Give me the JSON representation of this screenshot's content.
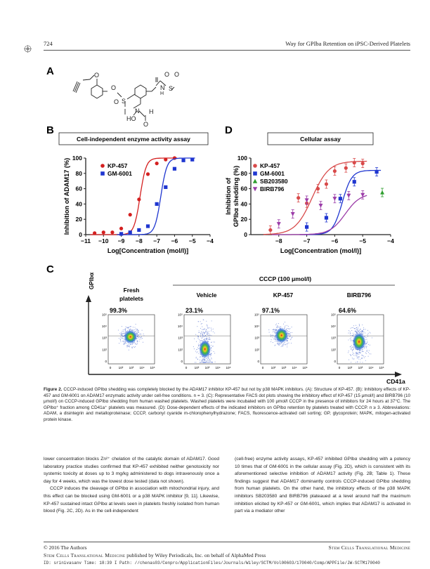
{
  "header": {
    "page_number": "724",
    "running_title": "Way for GPIba Retention on iPSC-Derived Platelets"
  },
  "figure": {
    "panel_labels": {
      "a": "A",
      "b": "B",
      "c": "C",
      "d": "D"
    },
    "structure_atoms": {
      "o_ether": "O",
      "o1": "O",
      "s1": "S",
      "o2": "O",
      "s2": "S",
      "n_sulf": "N",
      "h_sulf": "H",
      "o3": "O",
      "o4": "O",
      "n_hydr": "N",
      "ho": "HO",
      "o5": "O",
      "h_form": "H"
    },
    "panel_b": {
      "title": "Cell-independent enzyme activity assay"
    },
    "panel_d": {
      "title": "Cellular assay"
    },
    "panel_c": {
      "yaxis": "GPIbα",
      "xaxis": "CD41a",
      "cccp_label": "CCCP (100 μmol/l)",
      "columns": [
        {
          "label": "Fresh platelets",
          "line1": "Fresh",
          "line2": "platelets",
          "percent": "99.3%"
        },
        {
          "label": "Vehicle",
          "percent": "23.1%"
        },
        {
          "label": "KP-457",
          "percent": "97.1%"
        },
        {
          "label": "BIRB796",
          "percent": "64.6%"
        }
      ],
      "x_ticks": [
        "0",
        "10²",
        "10³",
        "10⁴",
        "10⁵"
      ],
      "y_ticks": [
        "0",
        "10²",
        "10³",
        "10⁴",
        "10⁵"
      ]
    }
  },
  "chart_data": [
    {
      "type": "scatter",
      "panel": "B",
      "title": "Cell-independent enzyme activity assay",
      "xlabel": "Log[Concentration (mol/l)]",
      "ylabel": "Inhibition of ADAM17 (%)",
      "xlim": [
        -11,
        -4
      ],
      "ylim": [
        0,
        100
      ],
      "xticks": [
        -11,
        -10,
        -9,
        -8,
        -7,
        -6,
        -5,
        -4
      ],
      "yticks": [
        0,
        20,
        40,
        60,
        80,
        100
      ],
      "legend": "top-left",
      "series": [
        {
          "name": "KP-457",
          "color": "#d42020",
          "marker": "circle",
          "x": [
            -10.5,
            -10,
            -9.5,
            -9,
            -8.5,
            -8,
            -7.5,
            -7,
            -6.5,
            -6
          ],
          "y": [
            2,
            3,
            3,
            8,
            26,
            46,
            79,
            93,
            98,
            100
          ]
        },
        {
          "name": "GM-6001",
          "color": "#1f36d0",
          "marker": "square",
          "x": [
            -9,
            -8.5,
            -8,
            -7.5,
            -7,
            -6.5,
            -6,
            -5.5,
            -5
          ],
          "y": [
            1,
            3,
            6,
            11,
            40,
            62,
            86,
            97,
            98
          ]
        }
      ]
    },
    {
      "type": "scatter",
      "panel": "D",
      "title": "Cellular assay",
      "xlabel": "Log[Concentration (mol/l)]",
      "ylabel": "Inhibition of GPIbα shedding (%)",
      "xlim": [
        -9,
        -4
      ],
      "ylim": [
        0,
        100
      ],
      "xticks": [
        -8,
        -7,
        -6,
        -5,
        -4
      ],
      "yticks": [
        0,
        20,
        40,
        60,
        80,
        100
      ],
      "legend": "top-left",
      "series": [
        {
          "name": "KP-457",
          "color": "#d84a4a",
          "marker": "circle",
          "x": [
            -8.3,
            -7.3,
            -7,
            -6.6,
            -6.3,
            -6,
            -5.6,
            -5.3,
            -5
          ],
          "y": [
            6,
            48,
            41,
            60,
            66,
            83,
            87,
            94,
            93
          ]
        },
        {
          "name": "GM-6001",
          "color": "#1f36d0",
          "marker": "square",
          "x": [
            -7,
            -6.3,
            -5.8,
            -5.3,
            -4.5
          ],
          "y": [
            10,
            22,
            47,
            69,
            82
          ]
        },
        {
          "name": "SB203580",
          "color": "#2e9e2e",
          "marker": "triangle",
          "x": [
            -4.3
          ],
          "y": [
            55
          ]
        },
        {
          "name": "BIRB796",
          "color": "#9b3ca8",
          "marker": "triangle-down",
          "x": [
            -8,
            -7.5,
            -7,
            -6.5,
            -6,
            -5.5,
            -5
          ],
          "y": [
            14,
            27,
            45,
            38,
            47,
            51,
            52
          ]
        }
      ]
    }
  ],
  "caption": {
    "label": "Figure 2.",
    "text": "CCCP-induced GPIbα shedding was completely blocked by the ADAM17 inhibitor KP-457 but not by p38 MAPK inhibitors. (A): Structure of KP-457. (B): Inhibitory effects of KP-457 and GM-6001 on ADAM17 enzymatic activity under cell-free conditions. n = 3. (C): Representative FACS dot plots showing the inhibitory effect of KP-457 (15 μmol/l) and BIRB796 (10 μmol/l) on CCCP-induced GPIbα shedding from human washed platelets. Washed platelets were incubated with 100 μmol/l CCCP in the presence of inhibitors for 24 hours at 37°C. The GPIbα⁺ fraction among CD41a⁺ platelets was measured. (D): Dose-dependent effects of the indicated inhibitors on GPIbα retention by platelets treated with CCCP. n ≥ 3. Abbreviations: ADAM, a disintegrin and metalloproteinase; CCCP, carbonyl cyanide m-chlorophenylhydrazone; FACS, fluorescence-activated cell sorting; GP, glycoprotein; MAPK, mitogen-activated protein kinase."
  },
  "body": {
    "left": [
      {
        "indent": false,
        "text": "lower concentration blocks Zn²⁺ chelation of the catalytic domain of ADAM17. Good laboratory practice studies confirmed that KP-457 exhibited neither genotoxicity nor systemic toxicity at doses up to 3 mg/kg administered to dogs intravenously once a day for 4 weeks, which was the lowest dose tested (data not shown)."
      },
      {
        "indent": true,
        "text": "CCCP induces the cleavage of GPIbα in association with mitochondrial injury, and this effect can be blocked using GM-6001 or a p38 MAPK inhibitor [9, 11]. Likewise, KP-457 sustained intact GPIbα at levels seen in platelets freshly isolated from human blood (Fig. 2C, 2D). As in the cell-independent"
      }
    ],
    "right": [
      {
        "indent": false,
        "text": "(cell-free) enzyme activity assays, KP-457 inhibited GPIbα shedding with a potency 10 times that of GM-6001 in the cellular assay (Fig. 2D), which is consistent with its aforementioned selective inhibition of ADAM17 activity (Fig. 2B; Table 1). These findings suggest that ADAM17 dominantly controls CCCP-induced GPIbα shedding from human platelets. On the other hand, the inhibitory effects of the p38 MAPK inhibitors SB203580 and BIRB796 plateaued at a level around half the maximum inhibition elicited by KP-457 or GM-6001, which implies that ADAM17 is activated in part via a mediator other"
      }
    ]
  },
  "footer": {
    "copyright": "© 2016 The Authors",
    "journal": "Stem Cells Translational Medicine",
    "published_prefix": "Stem Cells Translational Medicine",
    "published_suffix": " published by Wiley Periodicals, Inc. on behalf of AlphaMed Press",
    "idline": "ID: srinivasanv   Time: 18:39   I   Path: //chenas03/Cenpro/ApplicationFiles/Journals/Wiley/SCTM/Vol00603/170040/Comp/APPFile/JW-SCTM170040"
  }
}
